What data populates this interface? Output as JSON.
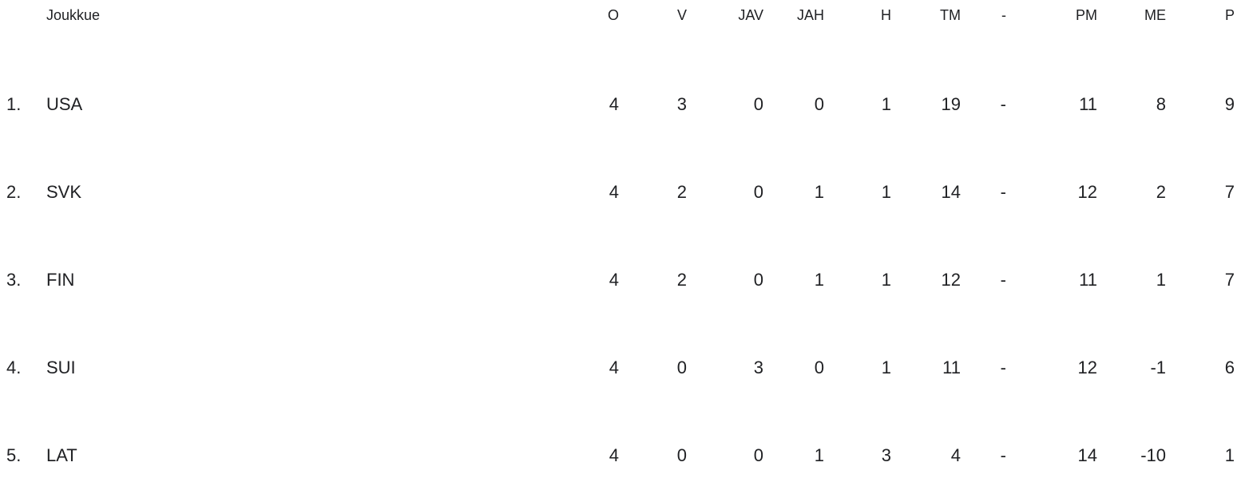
{
  "standings": {
    "headers": {
      "team": "Joukkue",
      "cols": [
        "O",
        "V",
        "JAV",
        "JAH",
        "H",
        "TM",
        "-",
        "PM",
        "ME",
        "P"
      ]
    },
    "rows": [
      {
        "rank": "1.",
        "team": "USA",
        "cols": [
          "4",
          "3",
          "0",
          "0",
          "1",
          "19",
          "-",
          "11",
          "8",
          "9"
        ]
      },
      {
        "rank": "2.",
        "team": "SVK",
        "cols": [
          "4",
          "2",
          "0",
          "1",
          "1",
          "14",
          "-",
          "12",
          "2",
          "7"
        ]
      },
      {
        "rank": "3.",
        "team": "FIN",
        "cols": [
          "4",
          "2",
          "0",
          "1",
          "1",
          "12",
          "-",
          "11",
          "1",
          "7"
        ]
      },
      {
        "rank": "4.",
        "team": "SUI",
        "cols": [
          "4",
          "0",
          "3",
          "0",
          "1",
          "11",
          "-",
          "12",
          "-1",
          "6"
        ]
      },
      {
        "rank": "5.",
        "team": "LAT",
        "cols": [
          "4",
          "0",
          "0",
          "1",
          "3",
          "4",
          "-",
          "14",
          "-10",
          "1"
        ]
      }
    ]
  }
}
